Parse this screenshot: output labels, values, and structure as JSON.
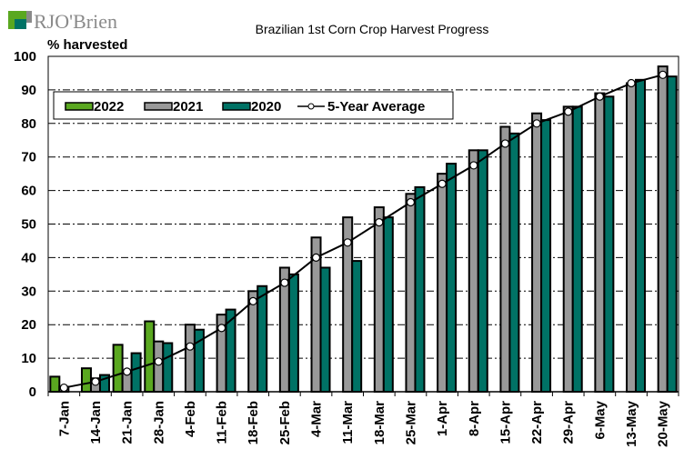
{
  "brand": {
    "name": "RJO'Brien"
  },
  "chart_data": {
    "type": "bar",
    "title": "Brazilian 1st Corn Crop Harvest Progress",
    "xlabel": "",
    "ylabel": "% harvested",
    "ylim": [
      0,
      100
    ],
    "yticks": [
      0,
      10,
      20,
      30,
      40,
      50,
      60,
      70,
      80,
      90,
      100
    ],
    "grid": true,
    "legend_position": "top-left",
    "categories": [
      "7-Jan",
      "14-Jan",
      "21-Jan",
      "28-Jan",
      "4-Feb",
      "11-Feb",
      "18-Feb",
      "25-Feb",
      "4-Mar",
      "11-Mar",
      "18-Mar",
      "25-Mar",
      "1-Apr",
      "8-Apr",
      "15-Apr",
      "22-Apr",
      "29-Apr",
      "6-May",
      "13-May",
      "20-May"
    ],
    "series": [
      {
        "name": "2022",
        "type": "bar",
        "color": "#5aa820",
        "values": [
          4.5,
          7,
          14,
          21,
          null,
          null,
          null,
          null,
          null,
          null,
          null,
          null,
          null,
          null,
          null,
          null,
          null,
          null,
          null,
          null
        ]
      },
      {
        "name": "2021",
        "type": "bar",
        "color": "#999999",
        "values": [
          1.5,
          4,
          6,
          15,
          20,
          23,
          30,
          37,
          46,
          52,
          55,
          59,
          65,
          72,
          79,
          83,
          85,
          89,
          92,
          97
        ]
      },
      {
        "name": "2020",
        "type": "bar",
        "color": "#007265",
        "values": [
          null,
          5,
          11.5,
          14.5,
          18.5,
          24.5,
          31.5,
          35,
          37,
          39,
          52,
          61,
          68,
          72,
          77,
          81,
          85,
          88,
          93,
          94
        ]
      },
      {
        "name": "5-Year Average",
        "type": "line",
        "color": "#000000",
        "values": [
          1.2,
          3,
          6,
          9,
          13.5,
          19,
          27,
          32.5,
          40,
          44.5,
          50.5,
          56.5,
          62,
          67.5,
          74,
          80,
          83.5,
          88,
          92,
          94.5
        ]
      }
    ]
  }
}
